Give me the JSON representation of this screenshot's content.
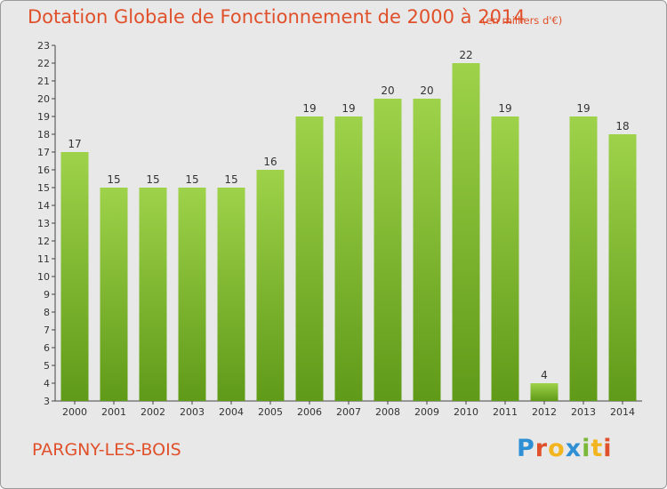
{
  "header": {
    "title": "Dotation Globale de Fonctionnement de 2000 à 2014",
    "subtitle": "(en milliers d'€)"
  },
  "footer": {
    "commune": "PARGNY-LES-BOIS",
    "logo_letters": [
      "P",
      "r",
      "o",
      "x",
      "i",
      "t",
      "i"
    ],
    "logo_colors": [
      "#2f8fd4",
      "#e0502a",
      "#f2b51f",
      "#2f8fd4",
      "#7ab83a",
      "#f2b51f",
      "#e0502a"
    ]
  },
  "colors": {
    "bar_light": "#9ed24a",
    "bar_dark": "#5f9a18",
    "text": "#333333",
    "accent": "#e0502a"
  },
  "chart_data": {
    "type": "bar",
    "categories": [
      "2000",
      "2001",
      "2002",
      "2003",
      "2004",
      "2005",
      "2006",
      "2007",
      "2008",
      "2009",
      "2010",
      "2011",
      "2012",
      "2013",
      "2014"
    ],
    "values": [
      17,
      15,
      15,
      15,
      15,
      16,
      19,
      19,
      20,
      20,
      22,
      19,
      4,
      19,
      18
    ],
    "yticks": [
      3,
      4,
      5,
      6,
      7,
      8,
      9,
      10,
      11,
      12,
      13,
      14,
      15,
      16,
      17,
      18,
      19,
      20,
      21,
      22,
      23
    ],
    "ylim": [
      3,
      23
    ],
    "grid": false,
    "show_data_labels": true
  }
}
